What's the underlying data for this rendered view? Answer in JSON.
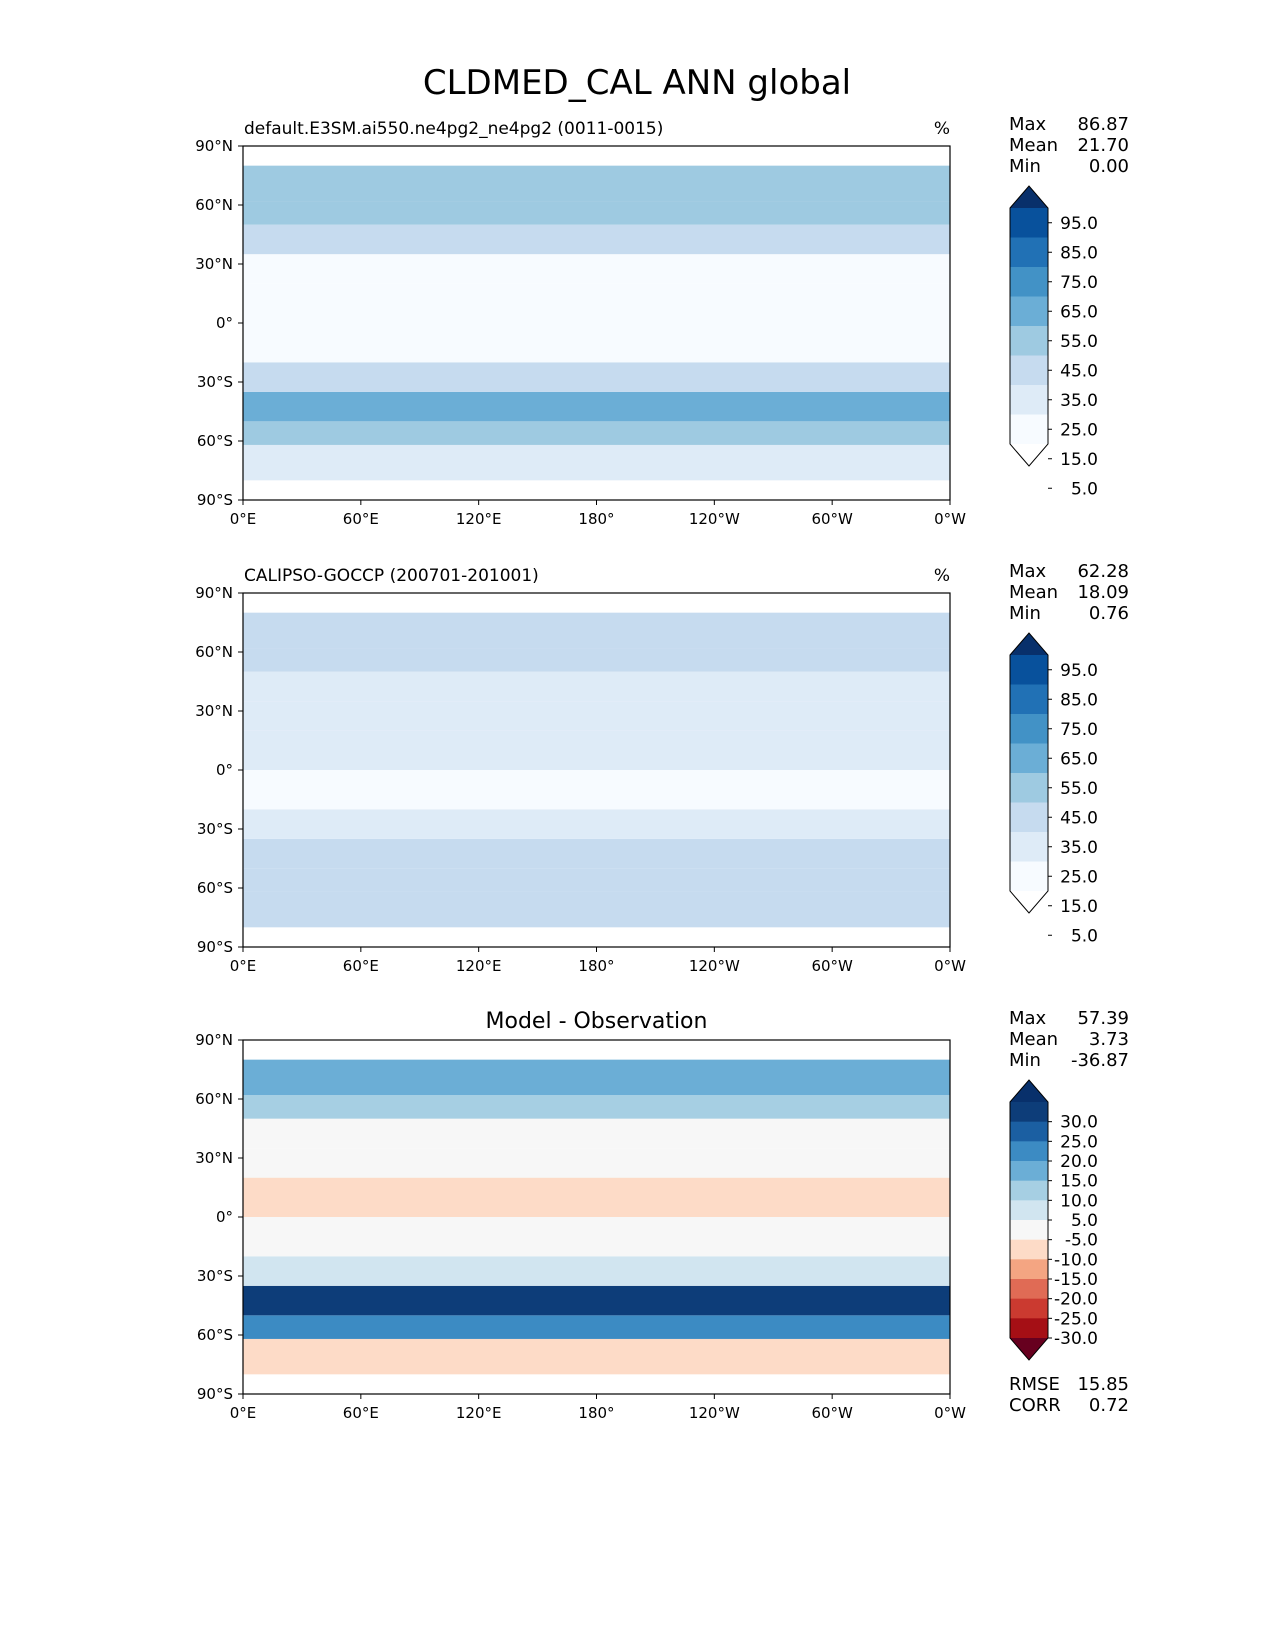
{
  "title": "CLDMED_CAL ANN global",
  "colors": {
    "seq": [
      "#ffffff",
      "#f7fbff",
      "#deebf7",
      "#c6dbef",
      "#9ecae1",
      "#6baed6",
      "#4292c6",
      "#2171b5",
      "#08519c",
      "#08306b"
    ],
    "diff": [
      "#67001f",
      "#a50f15",
      "#cb3a30",
      "#e06b55",
      "#f4a582",
      "#fddbc7",
      "#f7f7f7",
      "#d1e5f0",
      "#a6cfe3",
      "#6baed6",
      "#3c8bc3",
      "#1b5fa2",
      "#0d3d79",
      "#08306b"
    ]
  },
  "chart_data": [
    {
      "type": "heatmap",
      "panel": "test",
      "title_left": "default.E3SM.ai550.ne4pg2_ne4pg2 (0011-0015)",
      "units": "%",
      "stats": [
        {
          "label": "Max",
          "value": "86.87"
        },
        {
          "label": "Mean",
          "value": "21.70"
        },
        {
          "label": "Min",
          "value": "0.00"
        }
      ],
      "colorbar_ticks": [
        "95.0",
        "85.0",
        "75.0",
        "65.0",
        "55.0",
        "45.0",
        "35.0",
        "25.0",
        "15.0",
        "5.0"
      ],
      "xticks": [
        "0°E",
        "60°E",
        "120°E",
        "180°",
        "120°W",
        "60°W",
        "0°W"
      ],
      "yticks": [
        "90°N",
        "60°N",
        "30°N",
        "0°",
        "30°S",
        "60°S",
        "90°S"
      ],
      "xlim": [
        0,
        360
      ],
      "ylim": [
        -90,
        90
      ],
      "levels": [
        0,
        5,
        15,
        25,
        35,
        45,
        55,
        65,
        75,
        85,
        95
      ],
      "lat_bands": [
        -80,
        -62,
        -50,
        -35,
        -20,
        0,
        20,
        35,
        50,
        62,
        80
      ],
      "zonal_mean": [
        15,
        40,
        48,
        28,
        10,
        6,
        10,
        26,
        38,
        44,
        30
      ]
    },
    {
      "type": "heatmap",
      "panel": "reference",
      "title_left": "CALIPSO-GOCCP (200701-201001)",
      "units": "%",
      "stats": [
        {
          "label": "Max",
          "value": "62.28"
        },
        {
          "label": "Mean",
          "value": "18.09"
        },
        {
          "label": "Min",
          "value": "0.76"
        }
      ],
      "colorbar_ticks": [
        "95.0",
        "85.0",
        "75.0",
        "65.0",
        "55.0",
        "45.0",
        "35.0",
        "25.0",
        "15.0",
        "5.0"
      ],
      "xticks": [
        "0°E",
        "60°E",
        "120°E",
        "180°",
        "120°W",
        "60°W",
        "0°W"
      ],
      "yticks": [
        "90°N",
        "60°N",
        "30°N",
        "0°",
        "30°S",
        "60°S",
        "90°S"
      ],
      "xlim": [
        0,
        360
      ],
      "ylim": [
        -90,
        90
      ],
      "levels": [
        0,
        5,
        15,
        25,
        35,
        45,
        55,
        65,
        75,
        85,
        95
      ],
      "lat_bands": [
        -80,
        -62,
        -50,
        -35,
        -20,
        0,
        20,
        35,
        50,
        62,
        80
      ],
      "zonal_mean": [
        26,
        30,
        28,
        18,
        14,
        20,
        16,
        24,
        27,
        26,
        26
      ]
    },
    {
      "type": "heatmap",
      "panel": "difference",
      "title_center": "Model - Observation",
      "stats": [
        {
          "label": "Max",
          "value": "57.39"
        },
        {
          "label": "Mean",
          "value": "3.73"
        },
        {
          "label": "Min",
          "value": "-36.87"
        }
      ],
      "colorbar_ticks": [
        "30.0",
        "25.0",
        "20.0",
        "15.0",
        "10.0",
        "5.0",
        "-5.0",
        "-10.0",
        "-15.0",
        "-20.0",
        "-25.0",
        "-30.0"
      ],
      "extra_stats": [
        {
          "label": "RMSE",
          "value": "15.85"
        },
        {
          "label": "CORR",
          "value": "0.72"
        }
      ],
      "xticks": [
        "0°E",
        "60°E",
        "120°E",
        "180°",
        "120°W",
        "60°W",
        "0°W"
      ],
      "yticks": [
        "90°N",
        "60°N",
        "30°N",
        "0°",
        "30°S",
        "60°S",
        "90°S"
      ],
      "xlim": [
        0,
        360
      ],
      "ylim": [
        -90,
        90
      ],
      "levels": [
        -35,
        -30,
        -25,
        -20,
        -15,
        -10,
        -5,
        5,
        10,
        15,
        20,
        25,
        30,
        35
      ],
      "lat_bands": [
        -80,
        -62,
        -50,
        -35,
        -20,
        0,
        20,
        35,
        50,
        62,
        80
      ],
      "zonal_mean": [
        -8,
        20,
        30,
        6,
        0,
        -10,
        -4,
        2,
        12,
        18,
        10
      ]
    }
  ]
}
